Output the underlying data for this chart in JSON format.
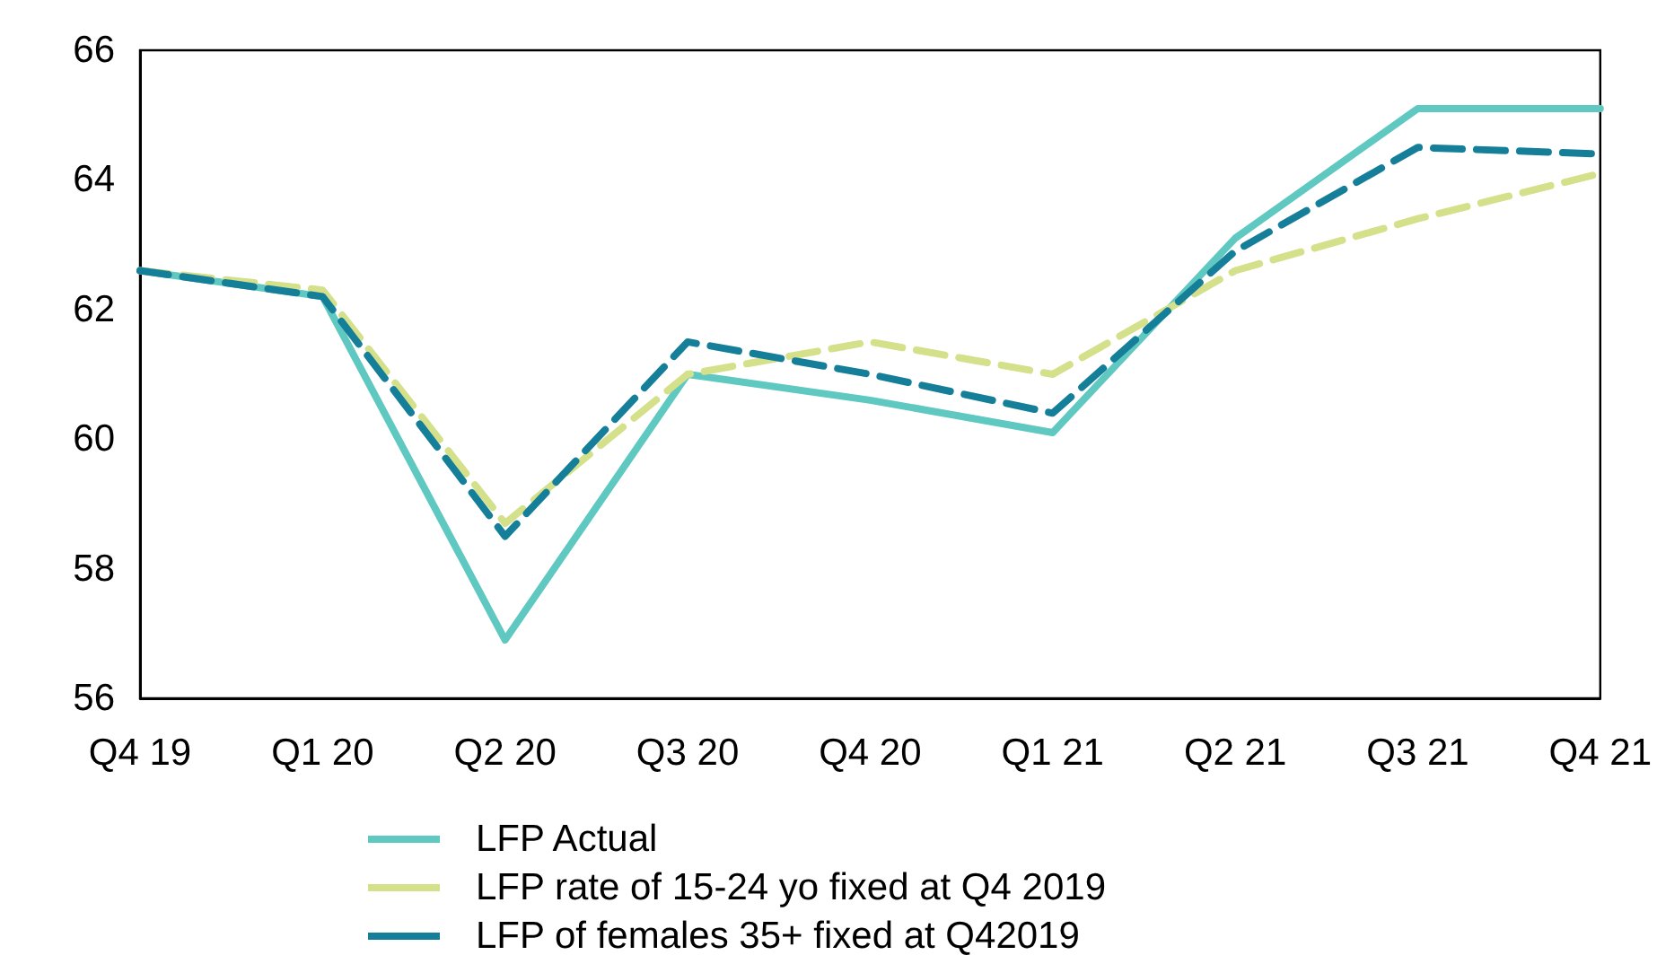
{
  "chart_data": {
    "type": "line",
    "categories": [
      "Q4 19",
      "Q1 20",
      "Q2 20",
      "Q3 20",
      "Q4 20",
      "Q1 21",
      "Q2 21",
      "Q3 21",
      "Q4 21"
    ],
    "series": [
      {
        "name": "LFP Actual",
        "color": "#5ec8c1",
        "line_style": "solid",
        "values": [
          62.6,
          62.2,
          56.9,
          61.0,
          60.6,
          60.1,
          63.1,
          65.1,
          65.1
        ]
      },
      {
        "name": "LFP rate of 15-24 yo fixed at Q4 2019",
        "color": "#d4e08a",
        "line_style": "dashed",
        "values": [
          62.6,
          62.3,
          58.7,
          61.0,
          61.5,
          61.0,
          62.6,
          63.4,
          64.1
        ]
      },
      {
        "name": "LFP of females 35+ fixed at Q42019",
        "color": "#157f99",
        "line_style": "dashed",
        "values": [
          62.6,
          62.2,
          58.5,
          61.5,
          61.0,
          60.4,
          62.9,
          64.5,
          64.4
        ]
      }
    ],
    "ylim": [
      56,
      66
    ],
    "yticks": [
      56,
      58,
      60,
      62,
      64,
      66
    ],
    "grid": false,
    "legend": "bottom",
    "marker": "none"
  }
}
